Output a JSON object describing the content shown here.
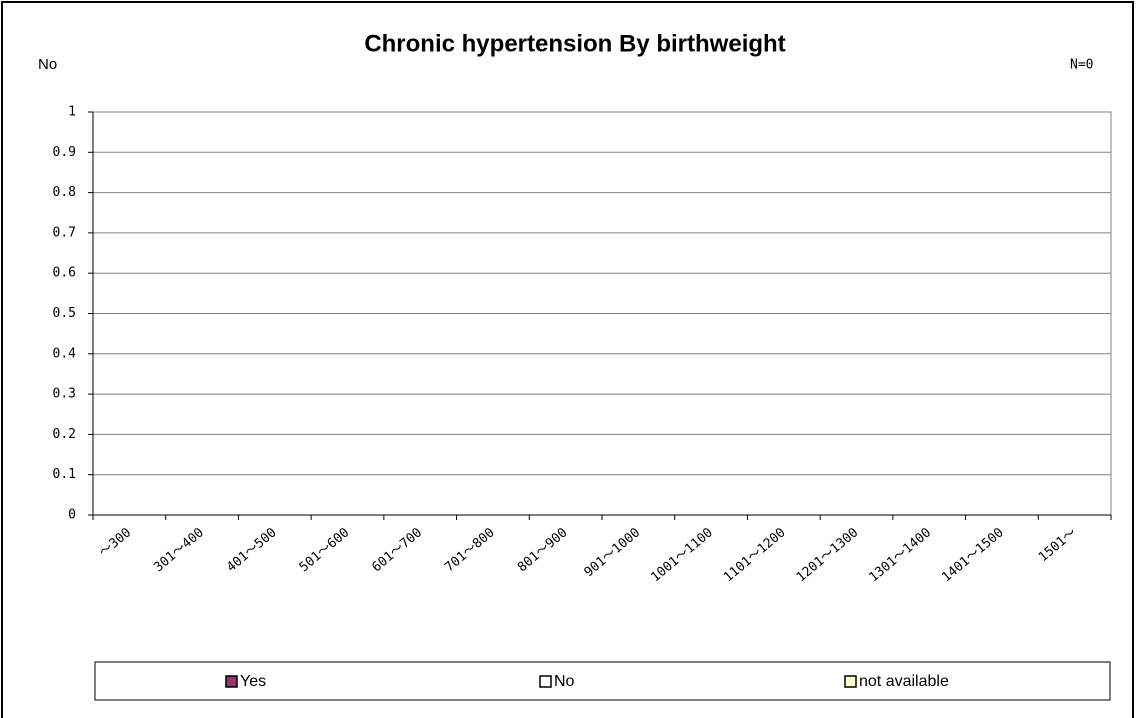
{
  "chart_data": {
    "type": "bar",
    "stacked": true,
    "title": "Chronic hypertension By birthweight",
    "ylabel": "No",
    "annotation": "N=0",
    "categories": [
      "～300",
      "301～400",
      "401～500",
      "501～600",
      "601～700",
      "701～800",
      "801～900",
      "901～1000",
      "1001～1100",
      "1101～1200",
      "1201～1300",
      "1301～1400",
      "1401～1500",
      "1501～"
    ],
    "series": [
      {
        "name": "Yes",
        "color": "#993366",
        "values": [
          0,
          0,
          0,
          0,
          0,
          0,
          0,
          0,
          0,
          0,
          0,
          0,
          0,
          0
        ]
      },
      {
        "name": "No",
        "color": "#ffffff",
        "values": [
          0,
          0,
          0,
          0,
          0,
          0,
          0,
          0,
          0,
          0,
          0,
          0,
          0,
          0
        ]
      },
      {
        "name": "not available",
        "color": "#ffffcc",
        "values": [
          0,
          0,
          0,
          0,
          0,
          0,
          0,
          0,
          0,
          0,
          0,
          0,
          0,
          0
        ]
      }
    ],
    "ylim": [
      0,
      1
    ],
    "yticks": [
      0,
      0.1,
      0.2,
      0.3,
      0.4,
      0.5,
      0.6,
      0.7,
      0.8,
      0.9,
      1
    ],
    "grid": true,
    "legend": "bottom"
  }
}
